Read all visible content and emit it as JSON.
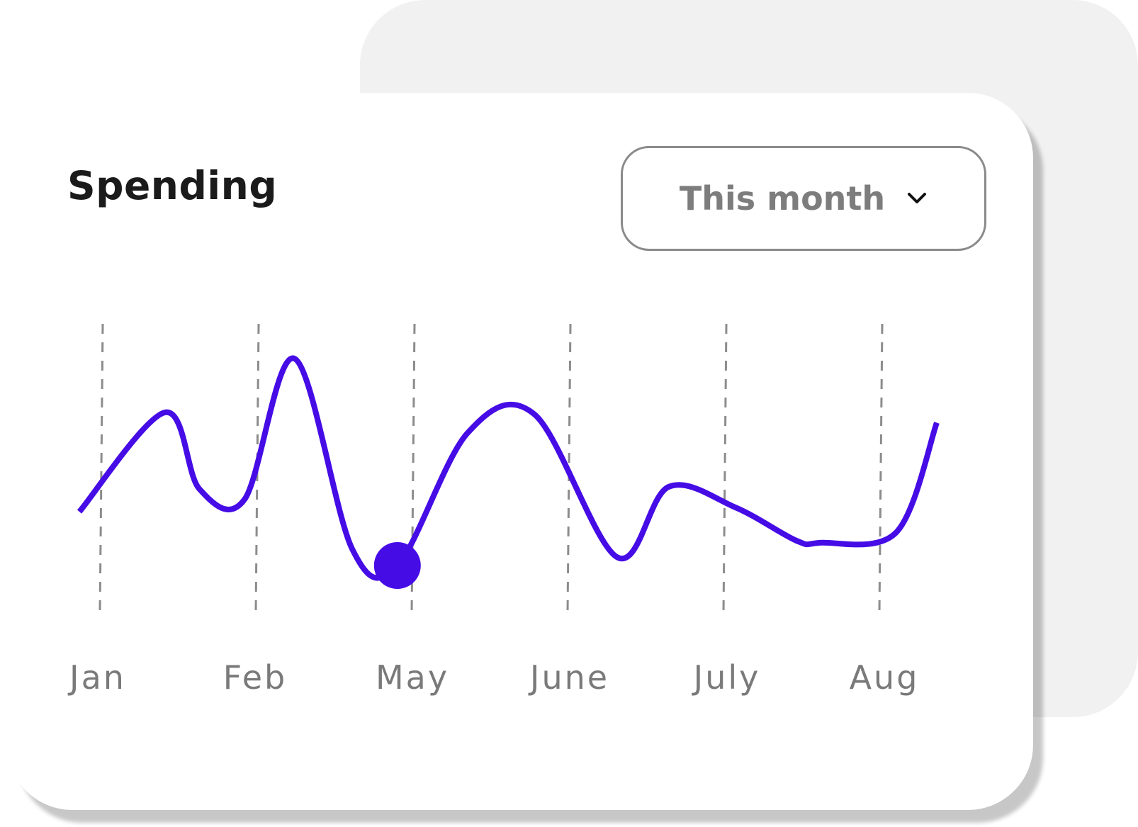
{
  "card": {
    "title": "Spending"
  },
  "period_select": {
    "value": "This month",
    "icon": "chevron-down-icon"
  },
  "colors": {
    "line": "#460ce6",
    "guide": "#8c8c8c",
    "back_panel": "#f1f1f1"
  },
  "chart_data": {
    "type": "line",
    "categories": [
      "Jan",
      "Feb",
      "May",
      "June",
      "July",
      "Aug"
    ],
    "x": [
      -0.15,
      0.4,
      0.62,
      0.91,
      1.23,
      1.6,
      1.89,
      2.34,
      2.77,
      3.3,
      3.63,
      4.06,
      4.45,
      4.6,
      5.09,
      5.35
    ],
    "values": [
      0.26,
      0.74,
      0.37,
      0.32,
      1.0,
      0.08,
      0.0,
      0.64,
      0.73,
      0.04,
      0.38,
      0.28,
      0.12,
      0.11,
      0.16,
      0.69
    ],
    "highlight_index": 6,
    "ylim": [
      -0.45,
      1.2
    ],
    "grid": "vertical dashed guide per category",
    "legend": "none",
    "title": "",
    "xlabel": "",
    "ylabel": ""
  }
}
